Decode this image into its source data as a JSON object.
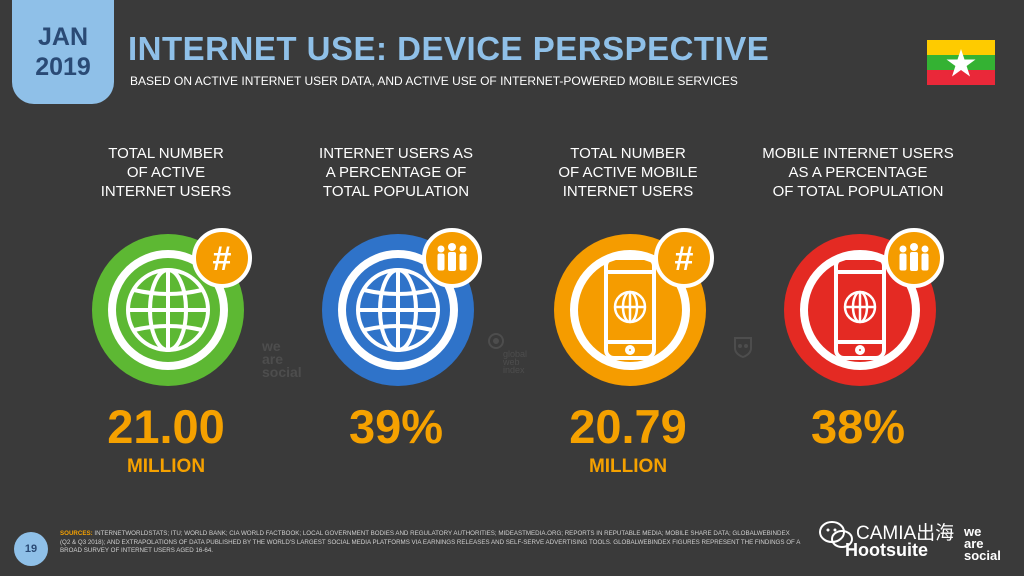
{
  "header": {
    "date_month": "JAN",
    "date_year": "2019",
    "title": "INTERNET USE: DEVICE PERSPECTIVE",
    "subtitle": "BASED ON ACTIVE INTERNET USER DATA, AND ACTIVE USE OF INTERNET-POWERED MOBILE SERVICES"
  },
  "flag": {
    "colors": [
      "#fecb00",
      "#34b233",
      "#ea2839",
      "#ffffff"
    ]
  },
  "stats": [
    {
      "label_lines": [
        "TOTAL NUMBER",
        "OF ACTIVE",
        "INTERNET USERS"
      ],
      "value": "21.00",
      "unit": "MILLION",
      "circle_color": "#5db833",
      "icon": "globe-icon",
      "badge": "hash-icon"
    },
    {
      "label_lines": [
        "INTERNET USERS AS",
        "A PERCENTAGE OF",
        "TOTAL POPULATION"
      ],
      "value": "39%",
      "unit": "",
      "circle_color": "#2f73c9",
      "icon": "globe-icon",
      "badge": "people-icon"
    },
    {
      "label_lines": [
        "TOTAL NUMBER",
        "OF ACTIVE MOBILE",
        "INTERNET USERS"
      ],
      "value": "20.79",
      "unit": "MILLION",
      "circle_color": "#f59c00",
      "icon": "smartphone-icon",
      "badge": "hash-icon"
    },
    {
      "label_lines": [
        "MOBILE INTERNET USERS",
        "AS A PERCENTAGE",
        "OF TOTAL POPULATION"
      ],
      "value": "38%",
      "unit": "",
      "circle_color": "#e42a23",
      "icon": "smartphone-icon",
      "badge": "people-icon"
    }
  ],
  "watermarks": {
    "we_are_social": [
      "we",
      "are",
      "social"
    ],
    "globalwebindex": [
      "global",
      "web",
      "index"
    ]
  },
  "footer": {
    "page_number": "19",
    "sources_label": "SOURCES:",
    "sources_text": "INTERNETWORLDSTATS; ITU; WORLD BANK; CIA WORLD FACTBOOK; LOCAL GOVERNMENT BODIES AND REGULATORY AUTHORITIES; MIDEASTMEDIA.ORG; REPORTS IN REPUTABLE MEDIA; MOBILE SHARE DATA; GLOBALWEBINDEX (Q2 & Q3 2018); AND EXTRAPOLATIONS OF DATA PUBLISHED BY THE WORLD'S LARGEST SOCIAL MEDIA PLATFORMS VIA EARNINGS RELEASES AND SELF-SERVE ADVERTISING TOOLS. GLOBALWEBINDEX FIGURES REPRESENT THE FINDINGS OF A BROAD SURVEY OF INTERNET USERS AGED 16-64.",
    "wechat_watermark": "CAMIA出海",
    "hootsuite": "Hootsuite",
    "we_are_social_brand": [
      "we",
      "are",
      "social"
    ]
  }
}
